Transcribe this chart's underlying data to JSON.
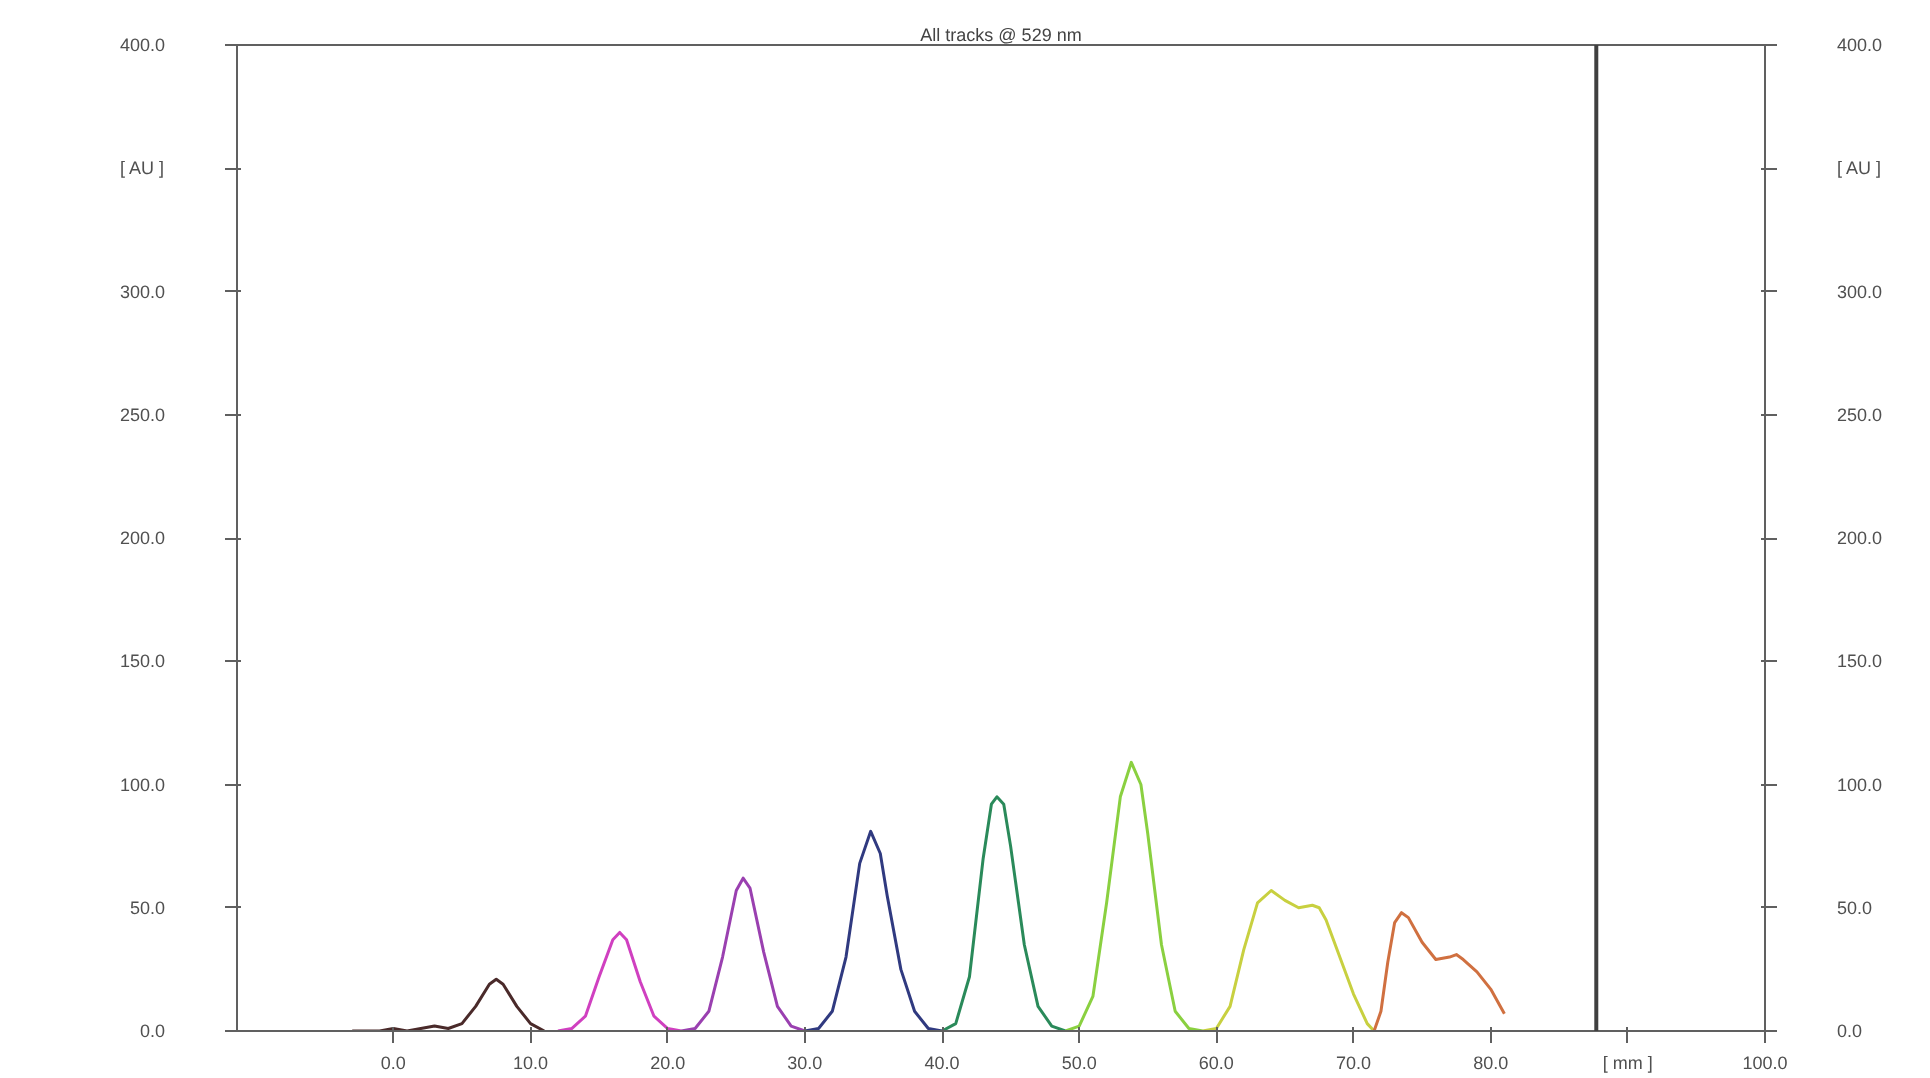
{
  "chart_data": {
    "type": "line",
    "title": "All tracks @ 529 nm",
    "xlim": [
      -11.4,
      100
    ],
    "ylim": [
      0,
      400
    ],
    "y2lim": [
      0,
      400
    ],
    "xticks": [
      {
        "value": 0,
        "label": "0.0"
      },
      {
        "value": 10,
        "label": "10.0"
      },
      {
        "value": 20,
        "label": "20.0"
      },
      {
        "value": 30,
        "label": "30.0"
      },
      {
        "value": 40,
        "label": "40.0"
      },
      {
        "value": 50,
        "label": "50.0"
      },
      {
        "value": 60,
        "label": "60.0"
      },
      {
        "value": 70,
        "label": "70.0"
      },
      {
        "value": 80,
        "label": "80.0"
      },
      {
        "value": 90,
        "label": "[ mm ]"
      },
      {
        "value": 100,
        "label": "100.0"
      }
    ],
    "yticks": [
      {
        "value": 0,
        "label": "0.0"
      },
      {
        "value": 50,
        "label": "50.0"
      },
      {
        "value": 100,
        "label": "100.0"
      },
      {
        "value": 150,
        "label": "150.0"
      },
      {
        "value": 200,
        "label": "200.0"
      },
      {
        "value": 250,
        "label": "250.0"
      },
      {
        "value": 300,
        "label": "300.0"
      },
      {
        "value": 350,
        "label": "[ AU ]"
      },
      {
        "value": 400,
        "label": "400.0"
      }
    ],
    "y2ticks": [
      {
        "value": 0,
        "label": "0.0"
      },
      {
        "value": 50,
        "label": "50.0"
      },
      {
        "value": 100,
        "label": "100.0"
      },
      {
        "value": 150,
        "label": "150.0"
      },
      {
        "value": 200,
        "label": "200.0"
      },
      {
        "value": 250,
        "label": "250.0"
      },
      {
        "value": 300,
        "label": "300.0"
      },
      {
        "value": 350,
        "label": "[ AU ]"
      },
      {
        "value": 400,
        "label": "400.0"
      }
    ],
    "grid": false,
    "marker": "none",
    "line_style": "solid",
    "ref_lines": [
      {
        "axis": "x",
        "value": 87.7,
        "color": "#404040"
      }
    ],
    "series": [
      {
        "color": "#4a2a2a",
        "x": [
          -3,
          -1,
          0,
          1,
          2,
          3,
          4,
          5,
          6,
          7,
          7.5,
          8,
          9,
          10,
          11
        ],
        "values": [
          0,
          0,
          1,
          0,
          1,
          2,
          1,
          3,
          10,
          19,
          21,
          19,
          10,
          3,
          0
        ]
      },
      {
        "color": "#d040c0",
        "x": [
          12,
          13,
          14,
          15,
          16,
          16.5,
          17,
          18,
          19,
          20,
          21
        ],
        "values": [
          0,
          1,
          6,
          22,
          37,
          40,
          37,
          20,
          6,
          1,
          0
        ]
      },
      {
        "color": "#9a40b0",
        "x": [
          21,
          22,
          23,
          24,
          25,
          25.5,
          26,
          27,
          28,
          29,
          30
        ],
        "values": [
          0,
          1,
          8,
          30,
          57,
          62,
          58,
          32,
          10,
          2,
          0
        ]
      },
      {
        "color": "#303a80",
        "x": [
          30,
          31,
          32,
          33,
          34,
          34.8,
          35.5,
          36,
          37,
          38,
          39,
          40
        ],
        "values": [
          0,
          1,
          8,
          30,
          68,
          81,
          72,
          55,
          25,
          8,
          1,
          0
        ]
      },
      {
        "color": "#2a8a5a",
        "x": [
          40,
          41,
          42,
          43,
          43.6,
          44,
          44.5,
          45,
          46,
          47,
          48,
          49
        ],
        "values": [
          0,
          3,
          22,
          70,
          92,
          95,
          92,
          75,
          35,
          10,
          2,
          0
        ]
      },
      {
        "color": "#8ad040",
        "x": [
          49,
          50,
          51,
          52,
          53,
          53.8,
          54.5,
          55,
          56,
          57,
          58,
          59
        ],
        "values": [
          0,
          2,
          14,
          52,
          95,
          109,
          100,
          80,
          35,
          8,
          1,
          0
        ]
      },
      {
        "color": "#c8d040",
        "x": [
          59,
          60,
          61,
          62,
          63,
          64,
          65,
          66,
          67,
          67.5,
          68,
          69,
          70,
          71,
          71.5
        ],
        "values": [
          0,
          1,
          10,
          33,
          52,
          57,
          53,
          50,
          51,
          50,
          45,
          30,
          15,
          3,
          0
        ]
      },
      {
        "color": "#d07040",
        "x": [
          71.5,
          72,
          72.5,
          73,
          73.5,
          74,
          75,
          76,
          77,
          77.5,
          78,
          79,
          80,
          81
        ],
        "values": [
          0,
          8,
          28,
          44,
          48,
          46,
          36,
          29,
          30,
          31,
          29,
          24,
          17,
          7
        ]
      }
    ]
  }
}
